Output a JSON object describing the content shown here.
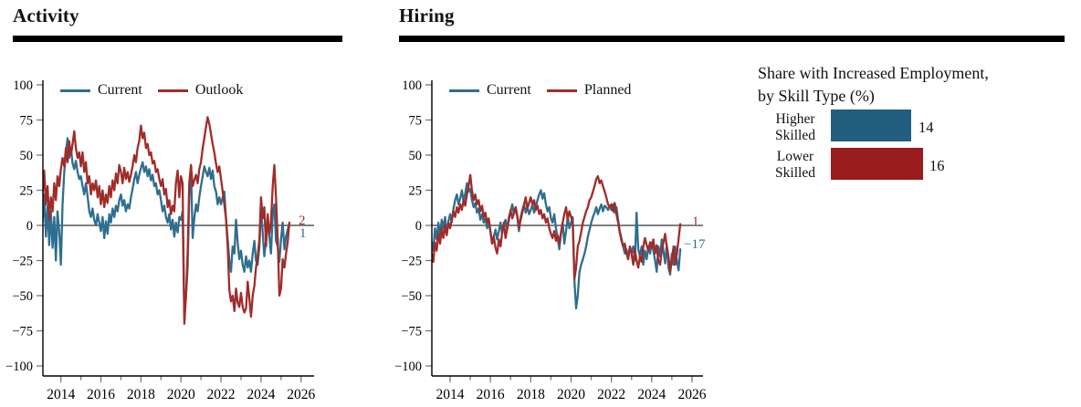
{
  "colors": {
    "line_blue": "#2e6e8e",
    "line_red": "#a02c2a",
    "bar_blue": "#215e80",
    "bar_red": "#9a1c1c",
    "axis": "#000000",
    "tick": "#7a7a7a"
  },
  "panels": {
    "activity": {
      "title": "Activity",
      "legend": [
        {
          "label": "Current",
          "color": "#2e6e8e"
        },
        {
          "label": "Outlook",
          "color": "#a02c2a"
        }
      ],
      "end_labels": [
        {
          "text": "2",
          "color": "#a02c2a"
        },
        {
          "text": "1",
          "color": "#2e6e8e"
        }
      ]
    },
    "hiring": {
      "title": "Hiring",
      "legend": [
        {
          "label": "Current",
          "color": "#2e6e8e"
        },
        {
          "label": "Planned",
          "color": "#a02c2a"
        }
      ],
      "end_labels": [
        {
          "text": "1",
          "color": "#a02c2a"
        },
        {
          "text": "−17",
          "color": "#2e6e8e"
        }
      ]
    },
    "skill": {
      "title_line1": "Share with Increased Employment,",
      "title_line2": "by Skill Type (%)",
      "bars": [
        {
          "label_line1": "Higher",
          "label_line2": "Skilled",
          "value": 14,
          "value_label": "14",
          "color": "#215e80"
        },
        {
          "label_line1": "Lower",
          "label_line2": "Skilled",
          "value": 16,
          "value_label": "16",
          "color": "#9a1c1c"
        }
      ]
    }
  },
  "chart_data": [
    {
      "type": "line",
      "title": "Activity",
      "xlabel": "",
      "ylabel": "",
      "ylim": [
        -100,
        100
      ],
      "yticks": [
        -100,
        -75,
        -50,
        -25,
        0,
        25,
        50,
        75,
        100
      ],
      "x_years_minor": [
        2013,
        2014,
        2015,
        2016,
        2017,
        2018,
        2019,
        2020,
        2021,
        2022,
        2023,
        2024,
        2025,
        2026
      ],
      "x_years_labeled": [
        2014,
        2016,
        2018,
        2020,
        2022,
        2024,
        2026
      ],
      "x_start": 2013.0,
      "x_step_years": 0.08333,
      "grid": false,
      "legend_position": "top-left-inside",
      "zero_line": true,
      "series": [
        {
          "name": "Current",
          "color": "#2e6e8e",
          "end_value": 1,
          "values": [
            26,
            2,
            22,
            -8,
            14,
            -14,
            10,
            -16,
            6,
            -25,
            10,
            -5,
            -28,
            15,
            38,
            52,
            62,
            48,
            55,
            44,
            40,
            46,
            38,
            33,
            35,
            28,
            22,
            30,
            21,
            10,
            6,
            12,
            4,
            0,
            8,
            2,
            -4,
            6,
            -9,
            3,
            -6,
            8,
            2,
            12,
            6,
            14,
            10,
            18,
            22,
            14,
            18,
            10,
            15,
            12,
            20,
            26,
            33,
            38,
            30,
            36,
            41,
            45,
            38,
            42,
            35,
            40,
            32,
            36,
            28,
            30,
            22,
            25,
            18,
            10,
            14,
            6,
            2,
            8,
            -3,
            4,
            -8,
            2,
            -5,
            6,
            4,
            10,
            -65,
            -50,
            -30,
            20,
            41,
            -9,
            5,
            15,
            10,
            20,
            28,
            35,
            42,
            38,
            35,
            41,
            33,
            39,
            28,
            24,
            15,
            20,
            15,
            20,
            24,
            5,
            -10,
            -25,
            -33,
            -15,
            -20,
            4,
            -12,
            -24,
            -18,
            -28,
            -33,
            -22,
            -30,
            -25,
            -33,
            -20,
            -11,
            -25,
            -28,
            -15,
            13,
            -5,
            -22,
            -10,
            6,
            -8,
            -20,
            8,
            15,
            -11,
            -15,
            -26,
            -10,
            2,
            -17,
            -8,
            -3,
            1
          ]
        },
        {
          "name": "Outlook",
          "color": "#a02c2a",
          "end_value": 2,
          "values": [
            35,
            22,
            39,
            15,
            28,
            4,
            20,
            10,
            30,
            18,
            35,
            28,
            40,
            48,
            42,
            55,
            45,
            60,
            50,
            58,
            67,
            55,
            48,
            52,
            42,
            52,
            38,
            45,
            30,
            35,
            22,
            30,
            25,
            32,
            20,
            28,
            15,
            25,
            13,
            22,
            16,
            28,
            20,
            32,
            25,
            37,
            30,
            43,
            38,
            30,
            41,
            33,
            38,
            31,
            36,
            42,
            50,
            45,
            55,
            60,
            71,
            62,
            66,
            55,
            58,
            50,
            52,
            44,
            46,
            38,
            40,
            33,
            28,
            33,
            22,
            26,
            13,
            18,
            8,
            14,
            10,
            30,
            39,
            20,
            35,
            30,
            -70,
            -50,
            -20,
            30,
            43,
            28,
            32,
            36,
            30,
            40,
            45,
            55,
            62,
            70,
            77,
            72,
            65,
            58,
            52,
            44,
            38,
            42,
            33,
            24,
            15,
            5,
            -15,
            -46,
            -54,
            -50,
            -61,
            -45,
            -55,
            -58,
            -48,
            -58,
            -62,
            -59,
            -40,
            -52,
            -65,
            -50,
            -43,
            -30,
            -22,
            -10,
            20,
            5,
            13,
            -15,
            8,
            -6,
            2,
            28,
            43,
            20,
            -10,
            -50,
            -45,
            -24,
            -30,
            -20,
            -12,
            2
          ]
        }
      ]
    },
    {
      "type": "line",
      "title": "Hiring",
      "xlabel": "",
      "ylabel": "",
      "ylim": [
        -100,
        100
      ],
      "yticks": [
        -100,
        -75,
        -50,
        -25,
        0,
        25,
        50,
        75,
        100
      ],
      "x_years_minor": [
        2013,
        2014,
        2015,
        2016,
        2017,
        2018,
        2019,
        2020,
        2021,
        2022,
        2023,
        2024,
        2025,
        2026
      ],
      "x_years_labeled": [
        2014,
        2016,
        2018,
        2020,
        2022,
        2024,
        2026
      ],
      "x_start": 2013.0,
      "x_step_years": 0.08333,
      "grid": false,
      "legend_position": "top-left-inside",
      "zero_line": true,
      "series": [
        {
          "name": "Current",
          "color": "#2e6e8e",
          "end_value": -17,
          "values": [
            -28,
            -12,
            -18,
            -2,
            -10,
            2,
            -8,
            4,
            -2,
            6,
            -6,
            3,
            8,
            2,
            12,
            18,
            22,
            15,
            19,
            25,
            17,
            23,
            30,
            24,
            26,
            18,
            13,
            16,
            9,
            12,
            4,
            8,
            2,
            5,
            -2,
            3,
            -5,
            -13,
            -8,
            -3,
            -10,
            -4,
            2,
            -6,
            1,
            4,
            -3,
            6,
            10,
            15,
            8,
            13,
            6,
            -4,
            6,
            11,
            15,
            9,
            13,
            8,
            11,
            15,
            9,
            13,
            18,
            22,
            25,
            19,
            23,
            15,
            10,
            13,
            5,
            2,
            8,
            -2,
            -9,
            -17,
            -6,
            2,
            -13,
            -4,
            6,
            -2,
            2,
            6,
            -40,
            -59,
            -50,
            -33,
            -28,
            -24,
            -20,
            -15,
            -8,
            -3,
            2,
            6,
            9,
            13,
            8,
            12,
            15,
            10,
            14,
            13,
            11,
            14,
            11,
            15,
            9,
            13,
            4,
            -4,
            -9,
            -15,
            -20,
            -17,
            -24,
            -15,
            -20,
            -15,
            -25,
            9,
            -17,
            -22,
            -15,
            -28,
            -18,
            -24,
            -15,
            -20,
            -12,
            -18,
            -25,
            -33,
            -15,
            -22,
            -10,
            -18,
            -27,
            -14,
            -30,
            -35,
            -20,
            -28,
            -15,
            -25,
            -32,
            -17
          ]
        },
        {
          "name": "Planned",
          "color": "#a02c2a",
          "end_value": 1,
          "values": [
            -32,
            -20,
            -26,
            -12,
            -18,
            -6,
            -13,
            -2,
            -9,
            0,
            -7,
            2,
            -2,
            4,
            10,
            6,
            13,
            9,
            15,
            11,
            18,
            14,
            22,
            28,
            36,
            25,
            18,
            22,
            15,
            18,
            10,
            14,
            6,
            9,
            2,
            5,
            -4,
            -13,
            -8,
            -16,
            -20,
            -10,
            -15,
            -5,
            2,
            -9,
            -2,
            4,
            11,
            5,
            9,
            13,
            7,
            -2,
            4,
            9,
            15,
            20,
            12,
            16,
            20,
            15,
            18,
            11,
            14,
            8,
            11,
            5,
            8,
            2,
            5,
            -2,
            -6,
            -9,
            -4,
            -11,
            -7,
            -13,
            -5,
            2,
            8,
            13,
            4,
            10,
            6,
            2,
            -38,
            -30,
            -15,
            -11,
            -5,
            2,
            6,
            10,
            13,
            18,
            20,
            24,
            28,
            33,
            35,
            30,
            32,
            28,
            24,
            20,
            15,
            13,
            15,
            10,
            16,
            8,
            2,
            -5,
            -11,
            -15,
            -13,
            -20,
            -24,
            -15,
            -20,
            -28,
            -17,
            -25,
            -30,
            -22,
            -26,
            -15,
            -9,
            -14,
            -18,
            -12,
            -16,
            -10,
            -20,
            -14,
            -25,
            -28,
            -18,
            -12,
            -6,
            -15,
            -22,
            -33,
            -25,
            -15,
            -28,
            -20,
            -10,
            1
          ]
        }
      ]
    },
    {
      "type": "bar",
      "orientation": "horizontal",
      "title": "Share with Increased Employment, by Skill Type (%)",
      "categories": [
        "Higher Skilled",
        "Lower Skilled"
      ],
      "values": [
        14,
        16
      ],
      "colors": [
        "#215e80",
        "#9a1c1c"
      ],
      "value_labels": [
        "14",
        "16"
      ],
      "grid": false
    }
  ]
}
